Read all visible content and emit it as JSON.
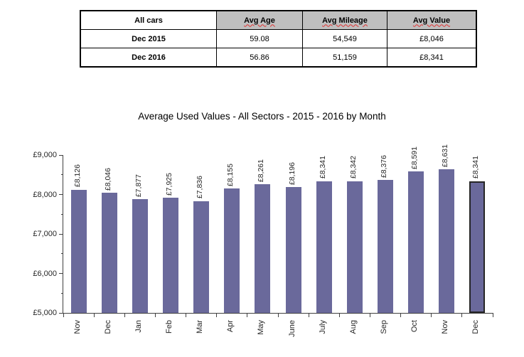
{
  "table": {
    "headers": [
      "All cars",
      "Avg Age",
      "Avg Mileage",
      "Avg Value"
    ],
    "rows": [
      [
        "Dec 2015",
        "59.08",
        "54,549",
        "£8,046"
      ],
      [
        "Dec 2016",
        "56.86",
        "51,159",
        "£8,341"
      ]
    ]
  },
  "chart": {
    "title": "Average Used Values - All Sectors - 2015 - 2016 by Month"
  },
  "chart_data": {
    "type": "bar",
    "title": "Average Used Values - All Sectors - 2015 - 2016 by Month",
    "categories": [
      "Nov",
      "Dec",
      "Jan",
      "Feb",
      "Mar",
      "Apr",
      "May",
      "June",
      "July",
      "Aug",
      "Sep",
      "Oct",
      "Nov",
      "Dec"
    ],
    "values": [
      8126,
      8046,
      7877,
      7925,
      7836,
      8155,
      8261,
      8196,
      8341,
      8342,
      8376,
      8591,
      8631,
      8341
    ],
    "data_labels": [
      "£8,126",
      "£8,046",
      "£7,877",
      "£7,925",
      "£7,836",
      "£8,155",
      "£8,261",
      "£8,196",
      "£8,341",
      "£8,342",
      "£8,376",
      "£8,591",
      "£8,631",
      "£8,341"
    ],
    "xlabel": "",
    "ylabel": "",
    "ylim": [
      5000,
      9000
    ],
    "ytick_interval": 1000,
    "ytick_minor_interval": 500,
    "ytick_labels": [
      "£5,000",
      "£6,000",
      "£7,000",
      "£8,000",
      "£9,000"
    ],
    "grid": false,
    "legend": false,
    "bar_color": "#6A699B",
    "highlighted_bar_index": 13,
    "highlight_border_color": "#262626"
  }
}
